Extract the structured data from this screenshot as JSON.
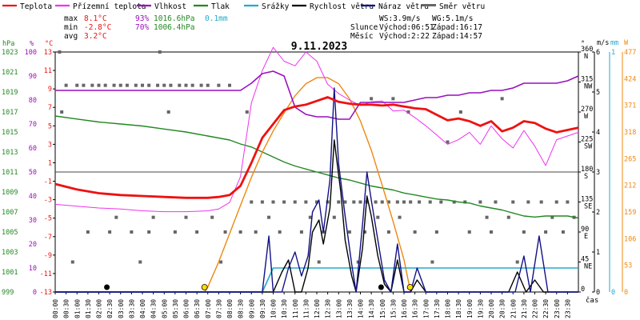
{
  "chart_data": {
    "type": "line",
    "title": "9.11.2023",
    "legend": [
      {
        "label": "Teplota",
        "color": "#ee1111",
        "style": "line"
      },
      {
        "label": "Přízemní teplota",
        "color": "#ee33ee",
        "style": "line"
      },
      {
        "label": "Vlhkost",
        "color": "#9911bb",
        "style": "line"
      },
      {
        "label": "Tlak",
        "color": "#228822",
        "style": "line"
      },
      {
        "label": "Srážky",
        "color": "#22aacc",
        "style": "line"
      },
      {
        "label": "Rychlost větru",
        "color": "#000000",
        "style": "line"
      },
      {
        "label": "Náraz větru",
        "color": "#111188",
        "style": "line"
      },
      {
        "label": "Směr větru",
        "color": "#666666",
        "style": "square"
      }
    ],
    "stats": {
      "rows": [
        {
          "label": "max",
          "temp": "8.1°C",
          "hum": "93%",
          "pres": "1016.6hPa",
          "rain": "0.1mm"
        },
        {
          "label": "min",
          "temp": "-2.8°C",
          "hum": "70%",
          "pres": "1006.4hPa",
          "rain": ""
        },
        {
          "label": "avg",
          "temp": "3.2°C",
          "hum": "",
          "pres": "",
          "rain": ""
        }
      ],
      "ws": "WS:3.9m/s",
      "wg": "WG:5.1m/s",
      "sun_label": "Slunce",
      "sunrise": "Východ:06:51",
      "sunset": "Západ:16:17",
      "moon_label": "Měsíc",
      "moonrise": "Východ:2:22",
      "moonset": "Západ:14:57"
    },
    "axes": {
      "hpa": {
        "unit": "hPa",
        "color": "#228822",
        "ticks": [
          "1023",
          "1021",
          "1019",
          "1017",
          "1015",
          "1013",
          "1011",
          "1009",
          "1007",
          "1005",
          "1003",
          "1001",
          "999"
        ]
      },
      "pct": {
        "unit": "%",
        "color": "#9911bb",
        "ticks": [
          "100",
          "90",
          "80",
          "70",
          "60",
          "50",
          "40",
          "30",
          "20",
          "10",
          "0"
        ]
      },
      "temp": {
        "unit": "°C",
        "color": "#ee1111",
        "ticks": [
          "13",
          "11",
          "9",
          "7",
          "5",
          "3",
          "1",
          "-1",
          "-3",
          "-5",
          "-7",
          "-9",
          "-11",
          "-13"
        ]
      },
      "dir": {
        "unit": "°",
        "ticks": [
          {
            "deg": "360",
            "lbl": "N"
          },
          {
            "deg": "315",
            "lbl": "NW"
          },
          {
            "deg": "270",
            "lbl": "W"
          },
          {
            "deg": "225",
            "lbl": "SW"
          },
          {
            "deg": "180",
            "lbl": "S"
          },
          {
            "deg": "135",
            "lbl": "SE"
          },
          {
            "deg": "90",
            "lbl": "E"
          },
          {
            "deg": "45",
            "lbl": "NE"
          },
          {
            "deg": "0",
            "lbl": ""
          }
        ]
      },
      "ms": {
        "unit": "m/s",
        "color": "#000000",
        "ticks": [
          "6",
          "5",
          "4",
          "3",
          "2",
          "1",
          "0"
        ]
      },
      "mm": {
        "unit": "mm",
        "color": "#22aacc",
        "ticks": [
          "1",
          "0"
        ]
      },
      "wm2": {
        "unit": "W",
        "color": "#ee8811",
        "ticks": [
          "477",
          "424",
          "371",
          "318",
          "265",
          "212",
          "159",
          "106",
          "53",
          "0"
        ]
      },
      "x_label": "čas",
      "x_ticks": [
        "00:00",
        "00:30",
        "01:00",
        "01:30",
        "02:00",
        "02:30",
        "03:00",
        "03:30",
        "04:00",
        "04:30",
        "05:00",
        "05:30",
        "06:00",
        "06:30",
        "07:00",
        "07:30",
        "08:00",
        "08:30",
        "09:00",
        "09:30",
        "10:00",
        "10:30",
        "11:00",
        "11:30",
        "12:00",
        "12:30",
        "13:00",
        "13:30",
        "14:00",
        "14:30",
        "15:00",
        "15:30",
        "16:00",
        "16:30",
        "17:00",
        "17:30",
        "18:00",
        "18:30",
        "19:00",
        "19:30",
        "20:00",
        "20:30",
        "21:00",
        "21:30",
        "22:00",
        "22:30",
        "23:00",
        "23:30"
      ]
    },
    "series": [
      {
        "name": "Teplota",
        "unit": "°C",
        "color": "#ee1111",
        "x": [
          0,
          1,
          2,
          3,
          4,
          5,
          6,
          7,
          7.5,
          8,
          8.5,
          9,
          9.5,
          10,
          10.5,
          11,
          11.5,
          12,
          12.5,
          13,
          13.5,
          14,
          14.5,
          15,
          15.5,
          16,
          16.5,
          17,
          17.5,
          18,
          18.5,
          19,
          19.5,
          20,
          20.5,
          21,
          21.5,
          22,
          22.5,
          23,
          24
        ],
        "y": [
          -1.3,
          -1.9,
          -2.3,
          -2.5,
          -2.6,
          -2.7,
          -2.8,
          -2.8,
          -2.7,
          -2.5,
          -1.5,
          1.0,
          3.7,
          5.2,
          6.7,
          7.1,
          7.3,
          7.7,
          8.1,
          7.6,
          7.4,
          7.3,
          7.3,
          7.2,
          7.3,
          7.1,
          6.9,
          6.8,
          6.2,
          5.6,
          5.8,
          5.5,
          5.0,
          5.5,
          4.4,
          4.8,
          5.5,
          5.3,
          4.7,
          4.3,
          4.8
        ]
      },
      {
        "name": "Přízemní teplota",
        "unit": "°C",
        "color": "#ee33ee",
        "x": [
          0,
          1,
          2,
          3,
          4,
          5,
          6,
          7,
          7.5,
          8,
          8.5,
          9,
          9.5,
          10,
          10.5,
          11,
          11.5,
          12,
          12.5,
          13,
          13.5,
          14,
          14.5,
          15,
          15.5,
          16,
          16.5,
          17,
          17.5,
          18,
          18.5,
          19,
          19.5,
          20,
          20.5,
          21,
          21.5,
          22,
          22.5,
          23,
          24
        ],
        "y": [
          -3.5,
          -3.7,
          -3.9,
          -4.0,
          -4.2,
          -4.3,
          -4.3,
          -4.2,
          -4.0,
          -3.3,
          -0.5,
          7.5,
          11.0,
          13.5,
          12.0,
          11.5,
          13.0,
          12.0,
          9.5,
          8.5,
          7.8,
          7.2,
          7.6,
          7.7,
          6.6,
          6.7,
          5.9,
          5.0,
          4.0,
          3.0,
          3.5,
          4.3,
          3.0,
          5.0,
          3.6,
          2.6,
          4.5,
          2.8,
          0.7,
          3.5,
          4.3
        ]
      },
      {
        "name": "Vlhkost",
        "unit": "%",
        "color": "#9911bb",
        "x": [
          0,
          1,
          2,
          3,
          4,
          5,
          6,
          7,
          8,
          8.5,
          9,
          9.5,
          10,
          10.5,
          11,
          11.5,
          12,
          12.5,
          13,
          13.5,
          14,
          14.5,
          15,
          15.5,
          16,
          16.5,
          17,
          17.5,
          18,
          18.5,
          19,
          19.5,
          20,
          20.5,
          21,
          21.5,
          22,
          22.5,
          23,
          23.5,
          24
        ],
        "y": [
          84,
          84,
          84,
          84,
          84,
          84,
          84,
          84,
          84,
          84,
          87,
          91,
          92,
          90,
          77,
          74,
          73,
          73,
          72,
          72,
          79,
          79,
          79,
          79,
          79,
          80,
          81,
          81,
          82,
          82,
          83,
          83,
          84,
          84,
          85,
          87,
          87,
          87,
          87,
          88,
          90
        ]
      },
      {
        "name": "Tlak",
        "unit": "hPa",
        "color": "#228822",
        "x": [
          0,
          1,
          2,
          3,
          4,
          5,
          6,
          7,
          8,
          8.5,
          9,
          9.5,
          10,
          10.5,
          11,
          11.5,
          12,
          12.5,
          13,
          13.5,
          14,
          14.5,
          15,
          15.5,
          16,
          16.5,
          17,
          17.5,
          18,
          18.5,
          19,
          19.5,
          20,
          20.5,
          21,
          21.5,
          22,
          22.5,
          23,
          23.5,
          24
        ],
        "y": [
          1016.6,
          1016.3,
          1016.0,
          1015.8,
          1015.6,
          1015.3,
          1015.0,
          1014.6,
          1014.2,
          1013.8,
          1013.5,
          1013.0,
          1012.5,
          1012.0,
          1011.6,
          1011.3,
          1011.0,
          1010.7,
          1010.4,
          1010.2,
          1009.9,
          1009.6,
          1009.4,
          1009.2,
          1008.9,
          1008.7,
          1008.5,
          1008.3,
          1008.2,
          1008.0,
          1007.9,
          1007.6,
          1007.4,
          1007.2,
          1006.9,
          1006.6,
          1006.5,
          1006.6,
          1006.6,
          1006.6,
          1006.4
        ]
      },
      {
        "name": "Srážky",
        "unit": "mm",
        "color": "#22aacc",
        "x": [
          0,
          9.5,
          10,
          24
        ],
        "y": [
          0,
          0,
          0.1,
          0.1
        ]
      },
      {
        "name": "Rychlost větru",
        "unit": "m/s",
        "color": "#000000",
        "x": [
          0,
          9.5,
          10,
          10.4,
          10.7,
          11,
          11.3,
          11.6,
          11.8,
          12.1,
          12.3,
          12.6,
          12.8,
          13.1,
          13.3,
          13.6,
          13.8,
          14.1,
          14.3,
          14.5,
          14.8,
          15.1,
          15.4,
          15.7,
          16,
          16.3,
          16.6,
          17,
          17.3,
          17.6,
          17.9,
          18.2,
          18.5,
          18.8,
          19.2,
          19.6,
          20,
          20.4,
          20.8,
          21.2,
          21.6,
          22,
          22.4,
          22.8,
          23.2,
          23.6,
          24
        ],
        "y": [
          0,
          0,
          0,
          0.5,
          0.8,
          0,
          0,
          0.6,
          1.5,
          1.8,
          1.2,
          2.1,
          3.8,
          2.5,
          1.3,
          0.4,
          0,
          1.1,
          2.4,
          1.9,
          0.9,
          0.2,
          0,
          0.8,
          0,
          0,
          0.3,
          0,
          0,
          0,
          0,
          0,
          0,
          0,
          0,
          0,
          0,
          0,
          0,
          0.5,
          0,
          0.3,
          0,
          0,
          0,
          0,
          0
        ]
      },
      {
        "name": "Náraz větru",
        "unit": "m/s",
        "color": "#111188",
        "x": [
          0,
          9.5,
          9.8,
          10,
          10.4,
          10.7,
          11,
          11.3,
          11.6,
          11.8,
          12.1,
          12.3,
          12.6,
          12.8,
          13,
          13.3,
          13.6,
          13.8,
          14.1,
          14.3,
          14.5,
          14.8,
          15.1,
          15.4,
          15.7,
          16,
          16.3,
          16.6,
          17,
          17.3,
          17.6,
          17.9,
          18.3,
          18.7,
          19.1,
          19.5,
          19.9,
          20.3,
          20.7,
          21.1,
          21.5,
          21.8,
          22.2,
          22.6,
          23,
          23.5,
          24
        ],
        "y": [
          0,
          0,
          1.4,
          0,
          0,
          0.6,
          1.0,
          0.4,
          0.9,
          2.0,
          2.3,
          1.5,
          2.8,
          5.1,
          3.2,
          1.9,
          0.7,
          0,
          1.7,
          3.0,
          2.3,
          1.3,
          0.3,
          0,
          1.2,
          0,
          0,
          0.6,
          0,
          0,
          0,
          0,
          0,
          0,
          0,
          0,
          0,
          0,
          0,
          0,
          0.9,
          0,
          1.4,
          0,
          0,
          0,
          0
        ]
      },
      {
        "name": "Sluneční záření",
        "unit": "W/m²",
        "color": "#ee8811",
        "x": [
          6.85,
          7,
          7.5,
          8,
          8.5,
          9,
          9.5,
          10,
          10.5,
          11,
          11.5,
          12,
          12.5,
          13,
          13.5,
          14,
          14.5,
          15,
          15.5,
          16,
          16.3
        ],
        "y": [
          0,
          10,
          60,
          116,
          172,
          228,
          278,
          320,
          356,
          390,
          414,
          426,
          426,
          414,
          384,
          340,
          282,
          212,
          140,
          64,
          0
        ]
      }
    ],
    "wind_direction": {
      "x": [
        0.5,
        1.0,
        1.3,
        1.7,
        2.0,
        2.3,
        2.7,
        3.0,
        3.3,
        3.7,
        4.0,
        4.3,
        4.7,
        5.0,
        5.3,
        5.7,
        6.0,
        6.3,
        6.7,
        7.0,
        7.5,
        8.0,
        0.2,
        4.8,
        9.0,
        9.5,
        10.0,
        10.5,
        11.0,
        11.5,
        12.0,
        12.5,
        13.0,
        13.3,
        13.7,
        14.0,
        14.3,
        14.7,
        15.0,
        15.3,
        15.7,
        16.0,
        16.3,
        16.7,
        17.2,
        17.7,
        18.3,
        18.8,
        19.5,
        20.2,
        21.0,
        21.7,
        22.3,
        23.0,
        23.5,
        14.5,
        15.5,
        18.0,
        20.5,
        1.5,
        2.5,
        3.5,
        4.3,
        5.5,
        6.5,
        7.8,
        8.5,
        9.2,
        10.3,
        11.3,
        12.3,
        13.5,
        14.2,
        15.3,
        16.5,
        17.5,
        19.0,
        20.0,
        21.5,
        22.5,
        23.3,
        2.8,
        4.5,
        6.0,
        7.2,
        9.8,
        11.7,
        12.8,
        14.8,
        15.8,
        19.8,
        20.8,
        22.8,
        23.8,
        0.3,
        5.2,
        8.8,
        16.2,
        18.6,
        0.8,
        3.9,
        7.6,
        12.1,
        13.9,
        17.3,
        21.2
      ],
      "y": [
        310,
        310,
        310,
        310,
        310,
        310,
        310,
        310,
        310,
        310,
        310,
        310,
        310,
        310,
        310,
        310,
        310,
        310,
        310,
        310,
        310,
        310,
        360,
        360,
        135,
        135,
        135,
        135,
        135,
        135,
        135,
        135,
        135,
        135,
        135,
        135,
        135,
        135,
        135,
        135,
        135,
        135,
        135,
        135,
        135,
        135,
        135,
        135,
        135,
        135,
        135,
        135,
        135,
        135,
        135,
        290,
        290,
        225,
        290,
        90,
        90,
        90,
        90,
        90,
        90,
        90,
        90,
        90,
        90,
        90,
        90,
        90,
        90,
        90,
        90,
        90,
        90,
        90,
        90,
        90,
        90,
        112,
        112,
        112,
        112,
        112,
        112,
        112,
        112,
        112,
        112,
        112,
        112,
        112,
        270,
        270,
        270,
        270,
        270,
        45,
        45,
        45,
        45,
        45,
        45,
        45
      ]
    },
    "markers": [
      {
        "kind": "moon",
        "x": 2.37,
        "color": "#000000"
      },
      {
        "kind": "sun",
        "x": 6.85,
        "color": "#ffdd00"
      },
      {
        "kind": "moon",
        "x": 14.95,
        "color": "#000000"
      },
      {
        "kind": "sun",
        "x": 16.28,
        "color": "#ffdd00"
      }
    ]
  }
}
